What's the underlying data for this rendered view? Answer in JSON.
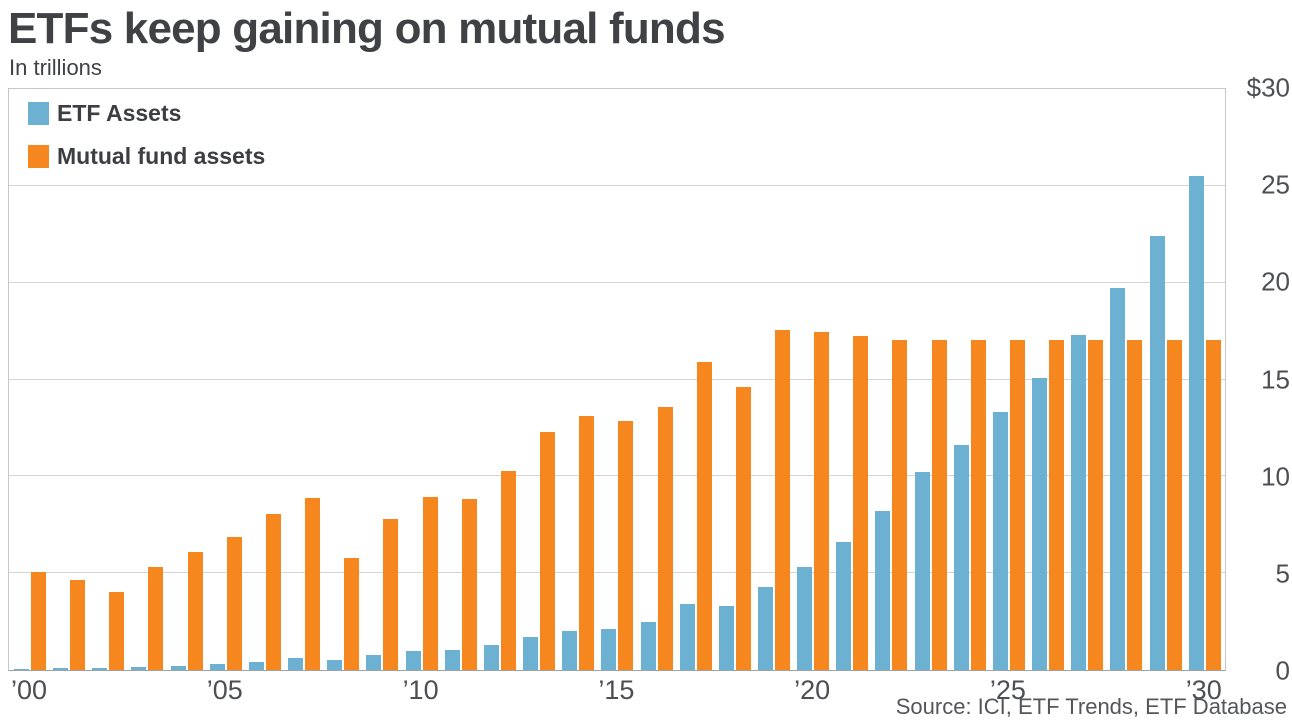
{
  "header": {
    "title": "ETFs keep gaining on mutual funds",
    "subtitle": "In trillions"
  },
  "legend": {
    "items": [
      {
        "label": "ETF Assets",
        "color": "#6cb1d1"
      },
      {
        "label": "Mutual fund assets",
        "color": "#f6871f"
      }
    ]
  },
  "source": "Source: ICI, ETF Trends, ETF Database",
  "chart_data": {
    "type": "bar",
    "title": "ETFs keep gaining on mutual funds",
    "subtitle": "In trillions",
    "unit": "USD trillions",
    "categories": [
      2000,
      2001,
      2002,
      2003,
      2004,
      2005,
      2006,
      2007,
      2008,
      2009,
      2010,
      2011,
      2012,
      2013,
      2014,
      2015,
      2016,
      2017,
      2018,
      2019,
      2020,
      2021,
      2022,
      2023,
      2024,
      2025,
      2026,
      2027,
      2028,
      2029,
      2030
    ],
    "series": [
      {
        "name": "ETF Assets",
        "color": "#6cb1d1",
        "values": [
          0.07,
          0.08,
          0.1,
          0.15,
          0.23,
          0.3,
          0.42,
          0.6,
          0.53,
          0.78,
          1.0,
          1.05,
          1.3,
          1.7,
          2.0,
          2.1,
          2.5,
          3.4,
          3.3,
          4.3,
          5.3,
          6.6,
          8.2,
          10.2,
          11.6,
          13.3,
          15.1,
          17.3,
          19.7,
          22.4,
          25.5
        ]
      },
      {
        "name": "Mutual fund assets",
        "color": "#f6871f",
        "values": [
          5.05,
          4.65,
          4.05,
          5.3,
          6.1,
          6.85,
          8.05,
          8.9,
          5.8,
          7.8,
          8.95,
          8.85,
          10.3,
          12.3,
          13.1,
          12.85,
          13.6,
          15.9,
          14.6,
          17.55,
          17.45,
          17.25,
          17.05,
          17.05,
          17.05,
          17.05,
          17.05,
          17.05,
          17.05,
          17.05,
          17.05
        ]
      }
    ],
    "ylim": [
      0,
      30
    ],
    "grid_values": [
      25,
      20,
      15,
      10,
      5
    ],
    "y_ticks": [
      {
        "label": "$30",
        "value": 30
      },
      {
        "label": "25",
        "value": 25
      },
      {
        "label": "20",
        "value": 20
      },
      {
        "label": "15",
        "value": 15
      },
      {
        "label": "10",
        "value": 10
      },
      {
        "label": "5",
        "value": 5
      },
      {
        "label": "0",
        "value": 0
      }
    ],
    "x_ticks": [
      {
        "index": 0,
        "label": "’00"
      },
      {
        "index": 5,
        "label": "’05"
      },
      {
        "index": 10,
        "label": "’10"
      },
      {
        "index": 15,
        "label": "’15"
      },
      {
        "index": 20,
        "label": "’20"
      },
      {
        "index": 25,
        "label": "’25"
      },
      {
        "index": 30,
        "label": "’30"
      }
    ],
    "grid": "horizontal",
    "legend_position": "top-left"
  }
}
